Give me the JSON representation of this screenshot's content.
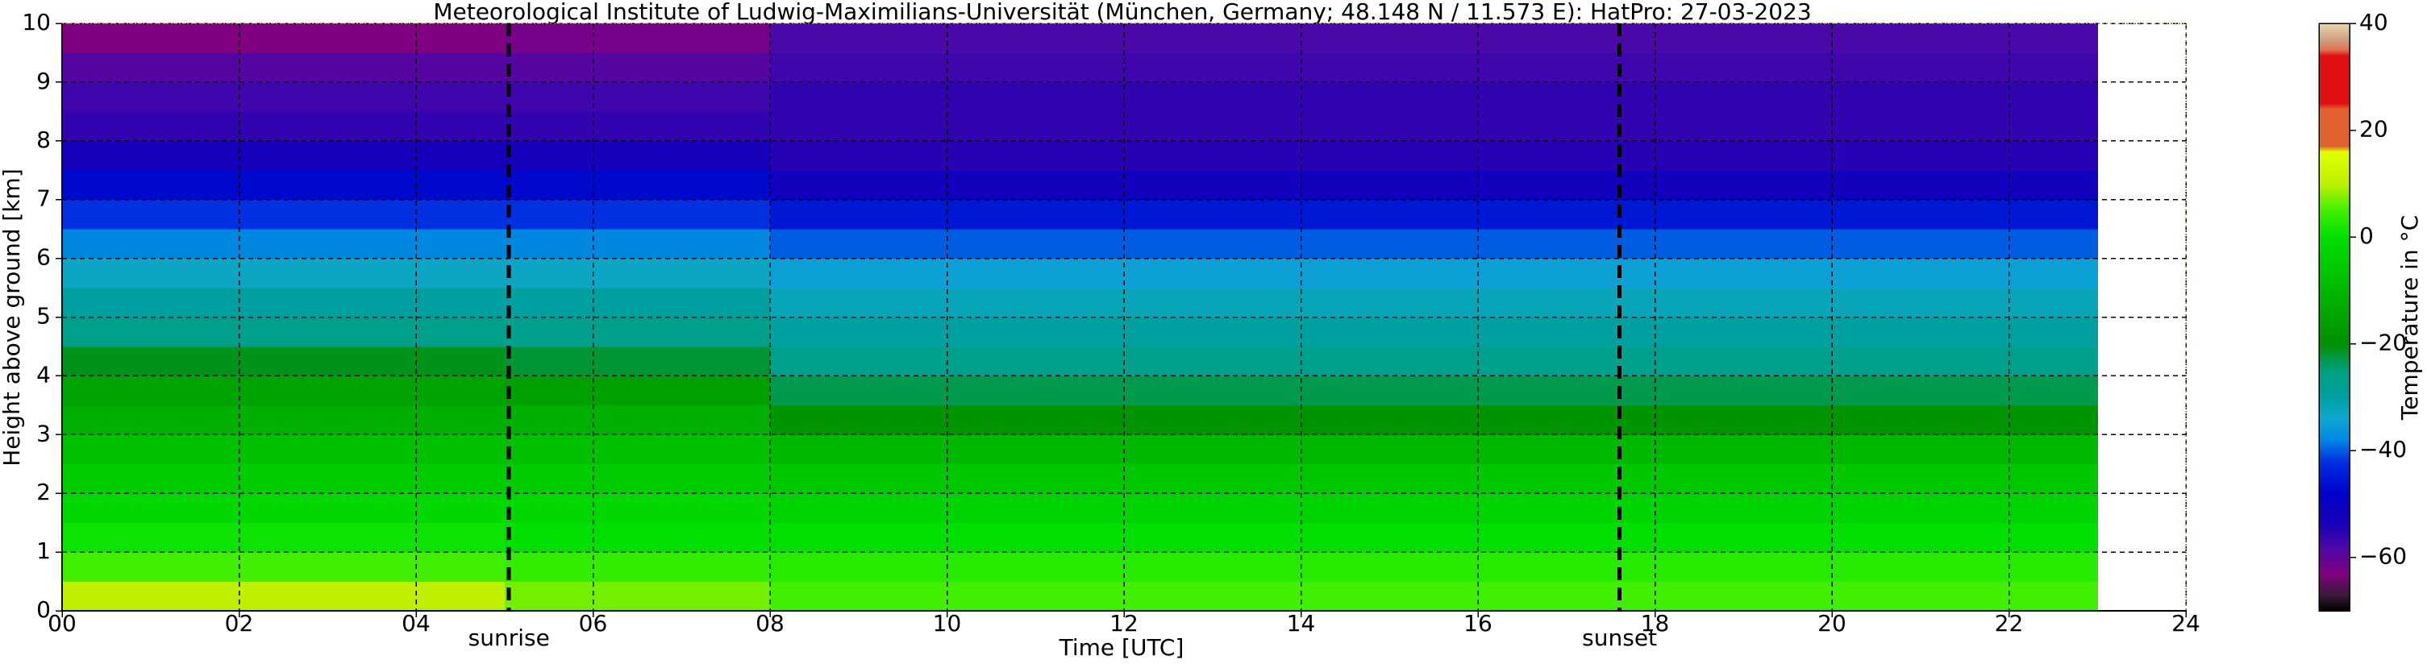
{
  "chart_data": {
    "type": "heatmap",
    "title": "Meteorological Institute of Ludwig-Maximilians-Universität (München, Germany; 48.148 N / 11.573 E):    HatPro: 27-03-2023",
    "xlabel": "Time [UTC]",
    "ylabel": "Height above ground [km]",
    "colorbar_label": "Temperature in °C",
    "x": [
      0,
      5,
      8,
      23
    ],
    "y": [
      0,
      0.5,
      1,
      1.5,
      2,
      2.5,
      3,
      3.5,
      4,
      4.5,
      5,
      5.5,
      6,
      6.5,
      7,
      7.5,
      8,
      8.5,
      9,
      9.5,
      10
    ],
    "z": [
      [
        10,
        7,
        5
      ],
      [
        5,
        4,
        3
      ],
      [
        1,
        0,
        0
      ],
      [
        -2,
        -2,
        -3
      ],
      [
        -5,
        -5,
        -6
      ],
      [
        -8,
        -8,
        -10
      ],
      [
        -12,
        -12,
        -19
      ],
      [
        -15,
        -16,
        -23
      ],
      [
        -21,
        -22,
        -27
      ],
      [
        -27,
        -27,
        -30
      ],
      [
        -30,
        -30,
        -32
      ],
      [
        -33,
        -33,
        -35
      ],
      [
        -38,
        -38,
        -40
      ],
      [
        -42,
        -42,
        -45
      ],
      [
        -47,
        -47,
        -52
      ],
      [
        -53,
        -53,
        -55
      ],
      [
        -56,
        -56,
        -56
      ],
      [
        -57,
        -57,
        -56
      ],
      [
        -59,
        -59,
        -57
      ],
      [
        -63,
        -62,
        -58
      ]
    ],
    "xlim": [
      0,
      24
    ],
    "ylim": [
      0,
      10
    ],
    "zlim": [
      -70,
      40
    ],
    "xticks": [
      {
        "value": 0,
        "label": "00"
      },
      {
        "value": 2,
        "label": "02"
      },
      {
        "value": 4,
        "label": "04"
      },
      {
        "value": 6,
        "label": "06"
      },
      {
        "value": 8,
        "label": "08"
      },
      {
        "value": 10,
        "label": "10"
      },
      {
        "value": 12,
        "label": "12"
      },
      {
        "value": 14,
        "label": "14"
      },
      {
        "value": 16,
        "label": "16"
      },
      {
        "value": 18,
        "label": "18"
      },
      {
        "value": 20,
        "label": "20"
      },
      {
        "value": 22,
        "label": "22"
      },
      {
        "value": 24,
        "label": "24"
      }
    ],
    "yticks": [
      0,
      1,
      2,
      3,
      4,
      5,
      6,
      7,
      8,
      9,
      10
    ],
    "zticks": [
      {
        "value": 40,
        "label": "40"
      },
      {
        "value": 20,
        "label": "20"
      },
      {
        "value": 0,
        "label": "0"
      },
      {
        "value": -20,
        "label": "−20"
      },
      {
        "value": -40,
        "label": "−40"
      },
      {
        "value": -60,
        "label": "−60"
      }
    ],
    "grid": true,
    "colorscale": [
      [
        -70,
        "#000000"
      ],
      [
        -67,
        "#3a1a3a"
      ],
      [
        -63,
        "#800080"
      ],
      [
        -58,
        "#4a08a8"
      ],
      [
        -54,
        "#1a00b8"
      ],
      [
        -48,
        "#0000c8"
      ],
      [
        -42,
        "#0030e0"
      ],
      [
        -38,
        "#0088e0"
      ],
      [
        -34,
        "#10a8d0"
      ],
      [
        -30,
        "#00a0a0"
      ],
      [
        -25,
        "#00a080"
      ],
      [
        -20,
        "#009000"
      ],
      [
        -10,
        "#00b800"
      ],
      [
        0,
        "#00e000"
      ],
      [
        5,
        "#40f000"
      ],
      [
        10,
        "#c0f000"
      ],
      [
        16,
        "#e0ff00"
      ],
      [
        17,
        "#e06030"
      ],
      [
        24,
        "#e06030"
      ],
      [
        25,
        "#e01010"
      ],
      [
        34,
        "#e01010"
      ],
      [
        35,
        "#e07050"
      ],
      [
        37,
        "#d0a080"
      ],
      [
        40,
        "#e8d8b0"
      ]
    ],
    "annotations": [
      {
        "x": 5.05,
        "label": "sunrise"
      },
      {
        "x": 17.6,
        "label": "sunset"
      }
    ]
  }
}
